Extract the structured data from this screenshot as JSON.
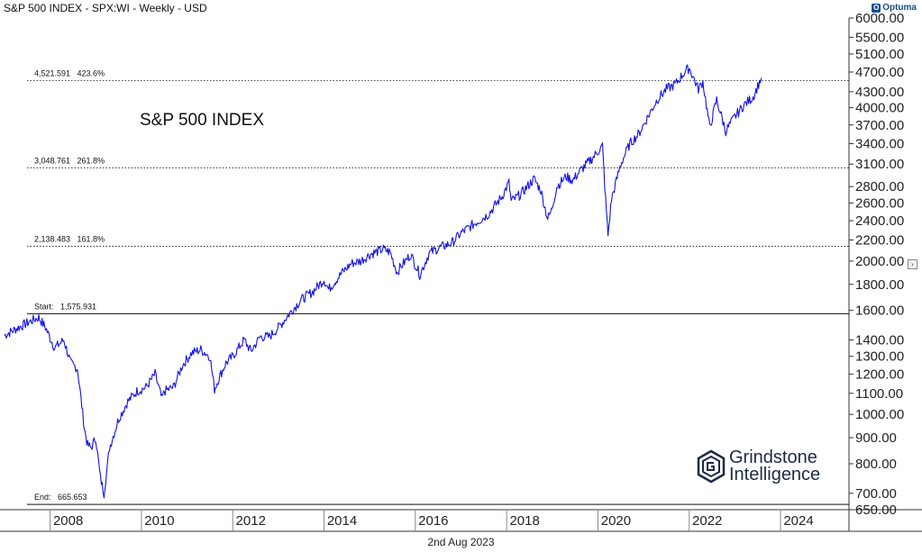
{
  "header": {
    "title": "S&P 500 INDEX - SPX:WI - Weekly - USD",
    "logo_text": "Optuma"
  },
  "footer": {
    "date": "2nd Aug 2023"
  },
  "watermark": {
    "line1": "Grindstone",
    "line2": "Intelligence"
  },
  "chart_data": {
    "type": "line",
    "title": "S&P 500 INDEX",
    "scale": "log",
    "ylim": [
      650,
      6000
    ],
    "xlim": [
      2007.0,
      2025.5
    ],
    "y_ticks": [
      "650.00",
      "700.00",
      "800.00",
      "900.00",
      "1000.00",
      "1100.00",
      "1200.00",
      "1300.00",
      "1400.00",
      "1600.00",
      "1800.00",
      "2000.00",
      "2200.00",
      "2400.00",
      "2600.00",
      "2800.00",
      "3100.00",
      "3400.00",
      "3700.00",
      "4000.00",
      "4300.00",
      "4700.00",
      "5100.00",
      "5500.00",
      "6000.00"
    ],
    "x_ticks": [
      "2008",
      "2010",
      "2012",
      "2014",
      "2016",
      "2018",
      "2020",
      "2022",
      "2024"
    ],
    "levels": [
      {
        "label": "4,521.591   423.6%",
        "value": 4521.591,
        "style": "dotted"
      },
      {
        "label": "3,048.761   261.8%",
        "value": 3048.761,
        "style": "dotted"
      },
      {
        "label": "2,138.483   161.8%",
        "value": 2138.483,
        "style": "dotted"
      },
      {
        "label": "Start:   1,575.931",
        "value": 1575.931,
        "style": "solid"
      },
      {
        "label": "End:   665.653",
        "value": 665.653,
        "style": "solid"
      }
    ],
    "series": [
      {
        "color": "#1212e6",
        "x": [
          2007.0,
          2007.3,
          2007.55,
          2007.75,
          2007.9,
          2008.1,
          2008.3,
          2008.45,
          2008.6,
          2008.75,
          2008.82,
          2008.9,
          2009.0,
          2009.1,
          2009.18,
          2009.3,
          2009.5,
          2009.7,
          2009.9,
          2010.1,
          2010.3,
          2010.45,
          2010.5,
          2010.7,
          2010.9,
          2011.1,
          2011.3,
          2011.5,
          2011.6,
          2011.7,
          2011.85,
          2012.0,
          2012.25,
          2012.4,
          2012.6,
          2012.8,
          2013.0,
          2013.25,
          2013.5,
          2013.75,
          2014.0,
          2014.1,
          2014.4,
          2014.6,
          2014.8,
          2015.0,
          2015.3,
          2015.45,
          2015.6,
          2015.7,
          2015.9,
          2016.1,
          2016.3,
          2016.5,
          2016.8,
          2017.0,
          2017.3,
          2017.6,
          2017.9,
          2018.05,
          2018.1,
          2018.3,
          2018.6,
          2018.75,
          2018.9,
          2018.98,
          2019.1,
          2019.3,
          2019.45,
          2019.6,
          2019.9,
          2020.1,
          2020.15,
          2020.22,
          2020.3,
          2020.5,
          2020.7,
          2020.9,
          2021.1,
          2021.3,
          2021.5,
          2021.7,
          2021.9,
          2022.0,
          2022.2,
          2022.3,
          2022.45,
          2022.6,
          2022.8,
          2023.0,
          2023.2,
          2023.4,
          2023.58
        ],
        "values": [
          1430,
          1480,
          1520,
          1550,
          1480,
          1350,
          1400,
          1260,
          1230,
          940,
          870,
          860,
          900,
          750,
          700,
          860,
          980,
          1060,
          1110,
          1130,
          1200,
          1070,
          1110,
          1130,
          1250,
          1320,
          1340,
          1300,
          1120,
          1180,
          1260,
          1300,
          1400,
          1330,
          1420,
          1420,
          1480,
          1580,
          1680,
          1740,
          1840,
          1760,
          1900,
          1980,
          2000,
          2060,
          2110,
          2080,
          1900,
          1960,
          2060,
          1880,
          2070,
          2120,
          2170,
          2270,
          2370,
          2470,
          2680,
          2850,
          2620,
          2700,
          2900,
          2750,
          2420,
          2510,
          2800,
          2930,
          2880,
          3000,
          3200,
          3370,
          2800,
          2250,
          2650,
          3100,
          3400,
          3560,
          3850,
          4150,
          4350,
          4450,
          4700,
          4790,
          4350,
          4500,
          3650,
          4150,
          3600,
          3840,
          4050,
          4200,
          4580
        ]
      }
    ]
  }
}
